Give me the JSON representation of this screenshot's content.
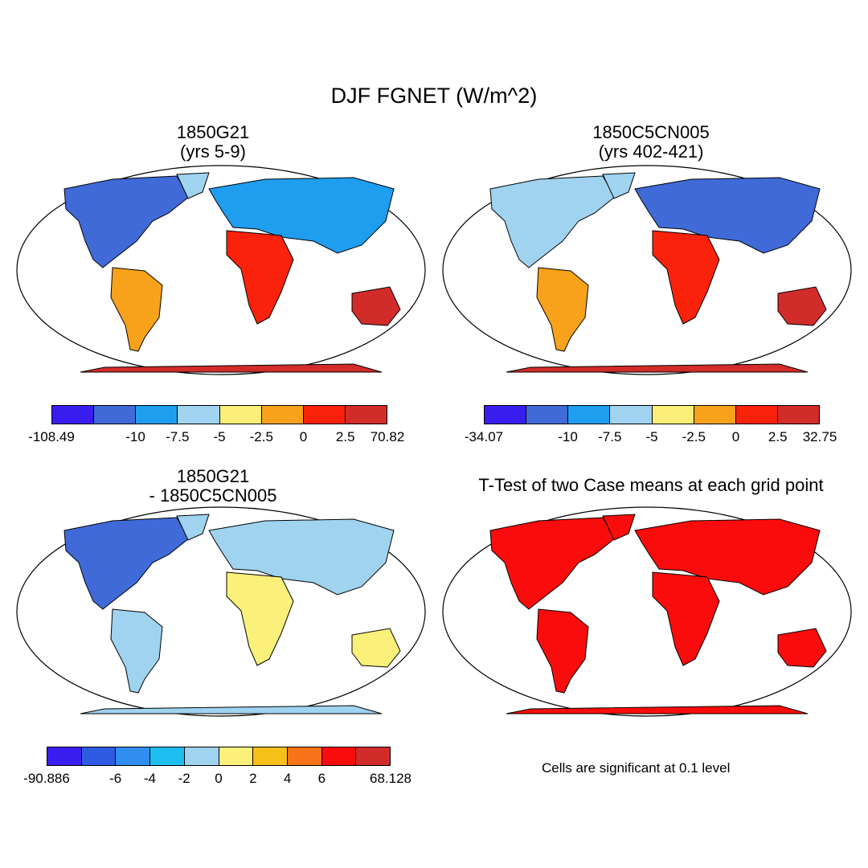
{
  "title": "DJF FGNET (W/m^2)",
  "panels": [
    {
      "title_line1": "1850G21",
      "title_line2": "(yrs 5-9)",
      "colorbar": {
        "labels": [
          "-108.49",
          "-10",
          "-7.5",
          "-5",
          "-2.5",
          "0",
          "2.5",
          "70.82"
        ],
        "colors": [
          "#3a1ef0",
          "#3f6ad8",
          "#1f9ef0",
          "#9fd3ef",
          "#fbee78",
          "#f7a21a",
          "#fb220c",
          "#d12c2a"
        ]
      },
      "regions": {
        "na": "#3f6ad8",
        "sa": "#f7a21a",
        "eu": "#1f9ef0",
        "af": "#fb220c",
        "au": "#d12c2a",
        "an": "#d12c2a",
        "gl": "#9fd3ef"
      }
    },
    {
      "title_line1": "1850C5CN005",
      "title_line2": "(yrs 402-421)",
      "colorbar": {
        "labels": [
          "-34.07",
          "-10",
          "-7.5",
          "-5",
          "-2.5",
          "0",
          "2.5",
          "32.75"
        ],
        "colors": [
          "#3a1ef0",
          "#3f6ad8",
          "#1f9ef0",
          "#9fd3ef",
          "#fbee78",
          "#f7a21a",
          "#fb220c",
          "#d12c2a"
        ]
      },
      "regions": {
        "na": "#9fd3ef",
        "sa": "#f7a21a",
        "eu": "#3f6ad8",
        "af": "#fb220c",
        "au": "#d12c2a",
        "an": "#d12c2a",
        "gl": "#9fd3ef"
      }
    },
    {
      "title_line1": "1850G21",
      "title_line2": "- 1850C5CN005",
      "colorbar": {
        "labels": [
          "-90.886",
          "-6",
          "-4",
          "-2",
          "0",
          "2",
          "4",
          "6",
          "68.128"
        ],
        "colors": [
          "#3a1ef0",
          "#2f5be3",
          "#2f8ef0",
          "#1fbef0",
          "#9fd3ef",
          "#fbf07a",
          "#f7bf1a",
          "#f7741a",
          "#fb0c0c",
          "#d12c2a"
        ]
      },
      "regions": {
        "na": "#3f6ad8",
        "sa": "#9fd3ef",
        "eu": "#9fd3ef",
        "af": "#fbf07a",
        "au": "#fbf07a",
        "an": "#9fd3ef",
        "gl": "#9fd3ef"
      }
    },
    {
      "title": "T-Test of two Case means at each grid point",
      "note": "Cells are significant at 0.1 level",
      "regions": {
        "na": "#fb0c0c",
        "sa": "#fb0c0c",
        "eu": "#fb0c0c",
        "af": "#fb0c0c",
        "au": "#fb0c0c",
        "an": "#fb0c0c",
        "gl": "#fb0c0c"
      }
    }
  ]
}
